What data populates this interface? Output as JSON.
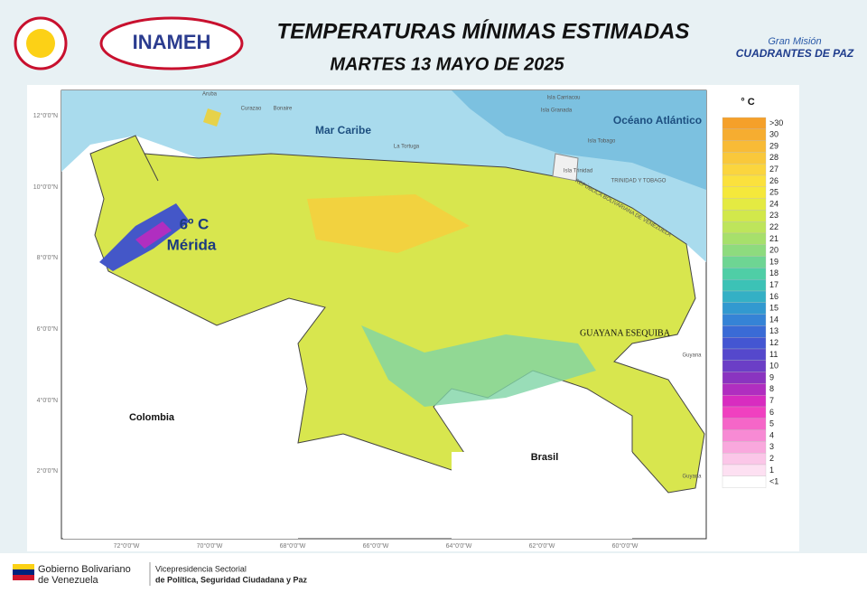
{
  "header": {
    "title": "TEMPERATURAS MÍNIMAS ESTIMADAS",
    "subtitle": "MARTES 13 MAYO DE 2025",
    "logo_left": "INAMEH",
    "logo_right_top": "Gran Misión",
    "logo_right_bottom": "CUADRANTES DE PAZ"
  },
  "map": {
    "regions": {
      "sea": "Mar Caribe",
      "ocean": "Océano Atlántico",
      "colombia": "Colombia",
      "brasil": "Brasil",
      "esequiba": "GUAYANA ESEQUIBA",
      "guyana_top": "Guyana",
      "guyana_bottom": "Guyana",
      "venezuela": "REPÚBLICA BOLIVARIANA DE VENEZUELA",
      "tt": "TRINIDAD Y TOBAGO"
    },
    "islands": {
      "aruba": "Aruba",
      "curazao": "Curazao",
      "bonaire": "Bonaire",
      "tortuga": "La Tortuga",
      "carriacou": "Isla Carriacou",
      "granada": "Isla Granada",
      "tobago": "Isla Tobago",
      "trinidad": "Isla Trinidad"
    },
    "highlight": {
      "value": "6º C",
      "place": "Mérida"
    },
    "lat_ticks": [
      "12°0'0\"N",
      "10°0'0\"N",
      "8°0'0\"N",
      "6°0'0\"N",
      "4°0'0\"N",
      "2°0'0\"N"
    ],
    "lon_ticks": [
      "72°0'0\"W",
      "70°0'0\"W",
      "68°0'0\"W",
      "66°0'0\"W",
      "64°0'0\"W",
      "62°0'0\"W",
      "60°0'0\"W"
    ]
  },
  "legend": {
    "unit": "° C",
    "items": [
      {
        "label": ">30",
        "color": "#f5a02a"
      },
      {
        "label": "30",
        "color": "#f6ad30"
      },
      {
        "label": "29",
        "color": "#f8bb36"
      },
      {
        "label": "28",
        "color": "#f9c83b"
      },
      {
        "label": "27",
        "color": "#fbd53e"
      },
      {
        "label": "26",
        "color": "#fbe13d"
      },
      {
        "label": "25",
        "color": "#f5e83b"
      },
      {
        "label": "24",
        "color": "#e4ea42"
      },
      {
        "label": "23",
        "color": "#d2e84b"
      },
      {
        "label": "22",
        "color": "#bee55b"
      },
      {
        "label": "21",
        "color": "#a7e06b"
      },
      {
        "label": "20",
        "color": "#8edb7e"
      },
      {
        "label": "19",
        "color": "#6ed593"
      },
      {
        "label": "18",
        "color": "#4fcea6"
      },
      {
        "label": "17",
        "color": "#3cc2b6"
      },
      {
        "label": "16",
        "color": "#34b0c5"
      },
      {
        "label": "15",
        "color": "#3299d0"
      },
      {
        "label": "14",
        "color": "#3583d6"
      },
      {
        "label": "13",
        "color": "#3a6bd6"
      },
      {
        "label": "12",
        "color": "#4456d2"
      },
      {
        "label": "11",
        "color": "#5548cc"
      },
      {
        "label": "10",
        "color": "#6b3ec6"
      },
      {
        "label": "9",
        "color": "#8a34c0"
      },
      {
        "label": "8",
        "color": "#b02ec0"
      },
      {
        "label": "7",
        "color": "#d82cc0"
      },
      {
        "label": "6",
        "color": "#f040c0"
      },
      {
        "label": "5",
        "color": "#f566c8"
      },
      {
        "label": "4",
        "color": "#f78ad4"
      },
      {
        "label": "3",
        "color": "#f9a8dd"
      },
      {
        "label": "2",
        "color": "#fbc6e8"
      },
      {
        "label": "1",
        "color": "#fde0f2"
      },
      {
        "label": "<1",
        "color": "#ffffff"
      }
    ]
  },
  "footer": {
    "gov_top": "Gobierno Bolivariano",
    "gov_bottom": "de Venezuela",
    "vp_top": "Vicepresidencia Sectorial",
    "vp_bottom": "de Política, Seguridad Ciudadana y Paz"
  }
}
